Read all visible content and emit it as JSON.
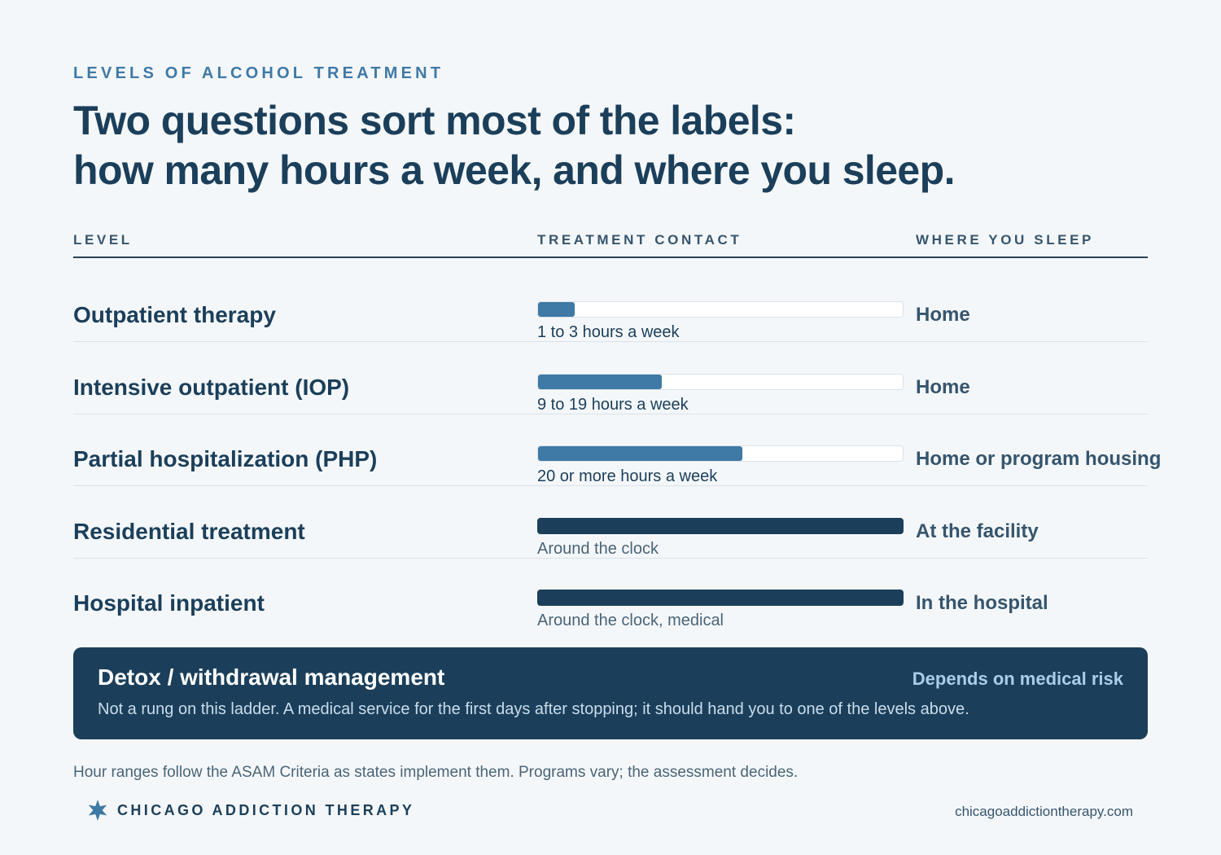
{
  "eyebrow": "LEVELS OF ALCOHOL TREATMENT",
  "headline": {
    "line1": "Two questions sort most of the labels:",
    "line2": "how many hours a week, and where you sleep."
  },
  "columns": {
    "level": "LEVEL",
    "contact": "TREATMENT CONTACT",
    "sleep": "WHERE YOU SLEEP"
  },
  "rows": [
    {
      "level": "Outpatient therapy",
      "intensity": 0.1,
      "solid": false,
      "contact": "1 to 3 hours a week",
      "sleep": "Home"
    },
    {
      "level": "Intensive outpatient (IOP)",
      "intensity": 0.34,
      "solid": false,
      "contact": "9 to 19 hours a week",
      "sleep": "Home"
    },
    {
      "level": "Partial hospitalization (PHP)",
      "intensity": 0.56,
      "solid": false,
      "contact": "20 or more hours a week",
      "sleep": "Home or program housing"
    },
    {
      "level": "Residential treatment",
      "intensity": 1.0,
      "solid": true,
      "contact": "Around the clock",
      "sleep": "At the facility"
    },
    {
      "level": "Hospital inpatient",
      "intensity": 1.0,
      "solid": true,
      "contact": "Around the clock, medical",
      "sleep": "In the hospital"
    }
  ],
  "detox": {
    "title": "Detox / withdrawal management",
    "risk": "Depends on medical risk",
    "description": "Not a rung on this ladder. A medical service for the first days after stopping; it should hand you to one of the levels above."
  },
  "footnote": "Hour ranges follow the ASAM Criteria as states implement them. Programs vary; the assessment decides.",
  "brand": {
    "name": "CHICAGO ADDICTION THERAPY",
    "icon": "star-icon"
  },
  "url": "chicagoaddictiontherapy.com",
  "colors": {
    "background": "#f4f7fa",
    "navy": "#1b3f5a",
    "accent": "#3f79a6",
    "detox_risk": "#a9cdeb"
  }
}
